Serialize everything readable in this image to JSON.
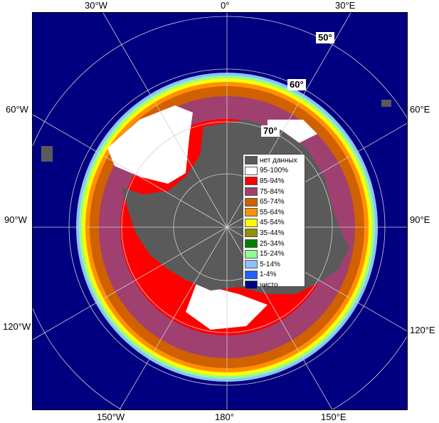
{
  "map": {
    "lon_labels": {
      "top_30w": "30°W",
      "top_0": "0°",
      "top_30e": "30°E",
      "left_60w": "60°W",
      "right_60e": "60°E",
      "left_90w": "90°W",
      "right_90e": "90°E",
      "left_120w": "120°W",
      "right_120e": "120°E",
      "bottom_150w": "150°W",
      "bottom_180": "180°",
      "bottom_150e": "150°E"
    },
    "lat_labels": {
      "lat50": "50°",
      "lat60": "60°",
      "lat70": "70°"
    }
  },
  "legend": {
    "items": [
      {
        "label": "нет данных",
        "color": "#5a5a5a"
      },
      {
        "label": "95-100%",
        "color": "#ffffff"
      },
      {
        "label": "85-94%",
        "color": "#ff0000"
      },
      {
        "label": "75-84%",
        "color": "#a04070"
      },
      {
        "label": "65-74%",
        "color": "#d06000"
      },
      {
        "label": "55-64%",
        "color": "#ff9000"
      },
      {
        "label": "45-54%",
        "color": "#ffff00"
      },
      {
        "label": "35-44%",
        "color": "#909000"
      },
      {
        "label": "25-34%",
        "color": "#008000"
      },
      {
        "label": "15-24%",
        "color": "#90ff90"
      },
      {
        "label": "5-14%",
        "color": "#90c0ff"
      },
      {
        "label": "1-4%",
        "color": "#2060ff"
      },
      {
        "label": "чисто",
        "color": "#000080"
      }
    ]
  }
}
